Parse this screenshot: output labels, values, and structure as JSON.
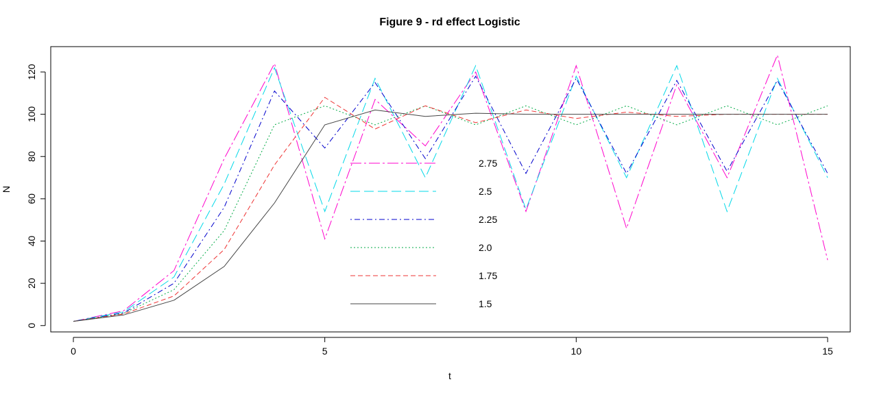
{
  "chart_data": {
    "type": "line",
    "title": "Figure 9 - rd effect Logistic",
    "xlabel": "t",
    "ylabel": "N",
    "xlim": [
      -0.45,
      15.45
    ],
    "ylim": [
      -3,
      132
    ],
    "x_ticks": [
      "0",
      "5",
      "10",
      "15"
    ],
    "y_ticks": [
      "0",
      "20",
      "40",
      "60",
      "80",
      "100",
      "120"
    ],
    "grid": false,
    "legend_position": "center",
    "x": [
      0,
      1,
      2,
      3,
      4,
      5,
      6,
      7,
      8,
      9,
      10,
      11,
      12,
      13,
      14,
      15
    ],
    "series": [
      {
        "name": "2.75",
        "color": "#ff00cc",
        "dash": "dashdot2",
        "values": [
          2,
          7,
          26,
          79,
          124,
          41,
          107,
          85,
          120,
          54,
          123,
          46,
          114,
          70,
          128,
          31
        ]
      },
      {
        "name": "2.5",
        "color": "#00d8e8",
        "dash": "longdash",
        "values": [
          2,
          6.5,
          23,
          67,
          122,
          54,
          117,
          70,
          123,
          55,
          118,
          70,
          123,
          54,
          117,
          70
        ]
      },
      {
        "name": "2.25",
        "color": "#0000cc",
        "dash": "dotdash",
        "values": [
          2,
          6,
          20,
          56,
          111,
          84,
          115,
          79,
          118,
          72,
          117,
          72,
          116,
          73,
          116,
          72
        ]
      },
      {
        "name": "2.0",
        "color": "#00aa44",
        "dash": "dotted",
        "values": [
          2,
          5.8,
          17,
          45,
          95,
          104,
          95,
          104,
          95,
          104,
          95,
          104,
          95,
          104,
          95,
          104
        ]
      },
      {
        "name": "1.75",
        "color": "#ee3333",
        "dash": "dashed",
        "values": [
          2,
          5.5,
          14,
          36,
          76,
          108,
          93,
          104,
          96,
          102,
          98,
          101,
          99,
          100,
          100,
          100
        ]
      },
      {
        "name": "1.5",
        "color": "#444444",
        "dash": "solid",
        "values": [
          2,
          5,
          12,
          28,
          58,
          95,
          102,
          99,
          100.5,
          100,
          100,
          100,
          100,
          100,
          100,
          100
        ]
      }
    ]
  }
}
